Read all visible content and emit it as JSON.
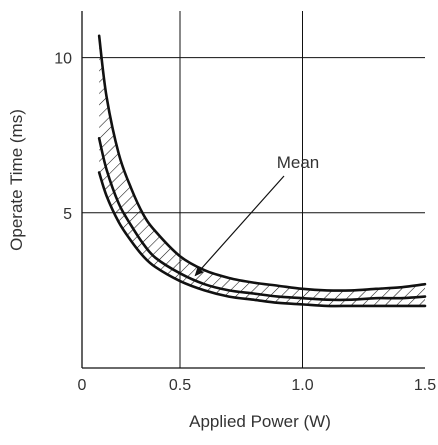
{
  "chart_data": {
    "type": "line",
    "title": "",
    "xlabel": "Applied Power (W)",
    "ylabel": "Operate Time (ms)",
    "xlim": [
      0.1,
      1.5
    ],
    "ylim": [
      0,
      11.5
    ],
    "x_ticks": [
      {
        "value": 0.1,
        "label": "0"
      },
      {
        "value": 0.5,
        "label": "0.5"
      },
      {
        "value": 1.0,
        "label": "1.0"
      },
      {
        "value": 1.5,
        "label": "1.5"
      }
    ],
    "y_ticks": [
      {
        "value": 5,
        "label": "5"
      },
      {
        "value": 10,
        "label": "10"
      }
    ],
    "grid": true,
    "series": [
      {
        "key": "upper",
        "x": [
          0.17,
          0.2,
          0.25,
          0.3,
          0.35,
          0.4,
          0.5,
          0.6,
          0.7,
          0.8,
          0.9,
          1.0,
          1.1,
          1.2,
          1.3,
          1.4,
          1.5
        ],
        "y": [
          10.7,
          8.75,
          6.9,
          5.8,
          4.95,
          4.4,
          3.6,
          3.15,
          2.9,
          2.75,
          2.65,
          2.55,
          2.5,
          2.5,
          2.55,
          2.6,
          2.7
        ]
      },
      {
        "key": "mean",
        "x": [
          0.17,
          0.2,
          0.25,
          0.3,
          0.35,
          0.4,
          0.5,
          0.6,
          0.7,
          0.8,
          0.9,
          1.0,
          1.1,
          1.2,
          1.3,
          1.4,
          1.5
        ],
        "y": [
          7.4,
          6.4,
          5.3,
          4.6,
          4.0,
          3.55,
          3.05,
          2.7,
          2.5,
          2.4,
          2.3,
          2.25,
          2.2,
          2.2,
          2.25,
          2.25,
          2.3
        ]
      },
      {
        "key": "lower",
        "x": [
          0.17,
          0.2,
          0.25,
          0.3,
          0.35,
          0.4,
          0.5,
          0.6,
          0.7,
          0.8,
          0.9,
          1.0,
          1.1,
          1.2,
          1.3,
          1.4,
          1.5
        ],
        "y": [
          6.3,
          5.55,
          4.7,
          4.1,
          3.6,
          3.25,
          2.8,
          2.5,
          2.3,
          2.2,
          2.1,
          2.05,
          2.0,
          2.0,
          2.0,
          2.0,
          2.0
        ]
      }
    ],
    "annotations": [
      {
        "text": "Mean",
        "target_series": "mean",
        "target_x": 0.55,
        "target_y": 2.85
      }
    ],
    "colors": {
      "line": "#111111",
      "grid": "#111111",
      "text": "#333333"
    }
  }
}
